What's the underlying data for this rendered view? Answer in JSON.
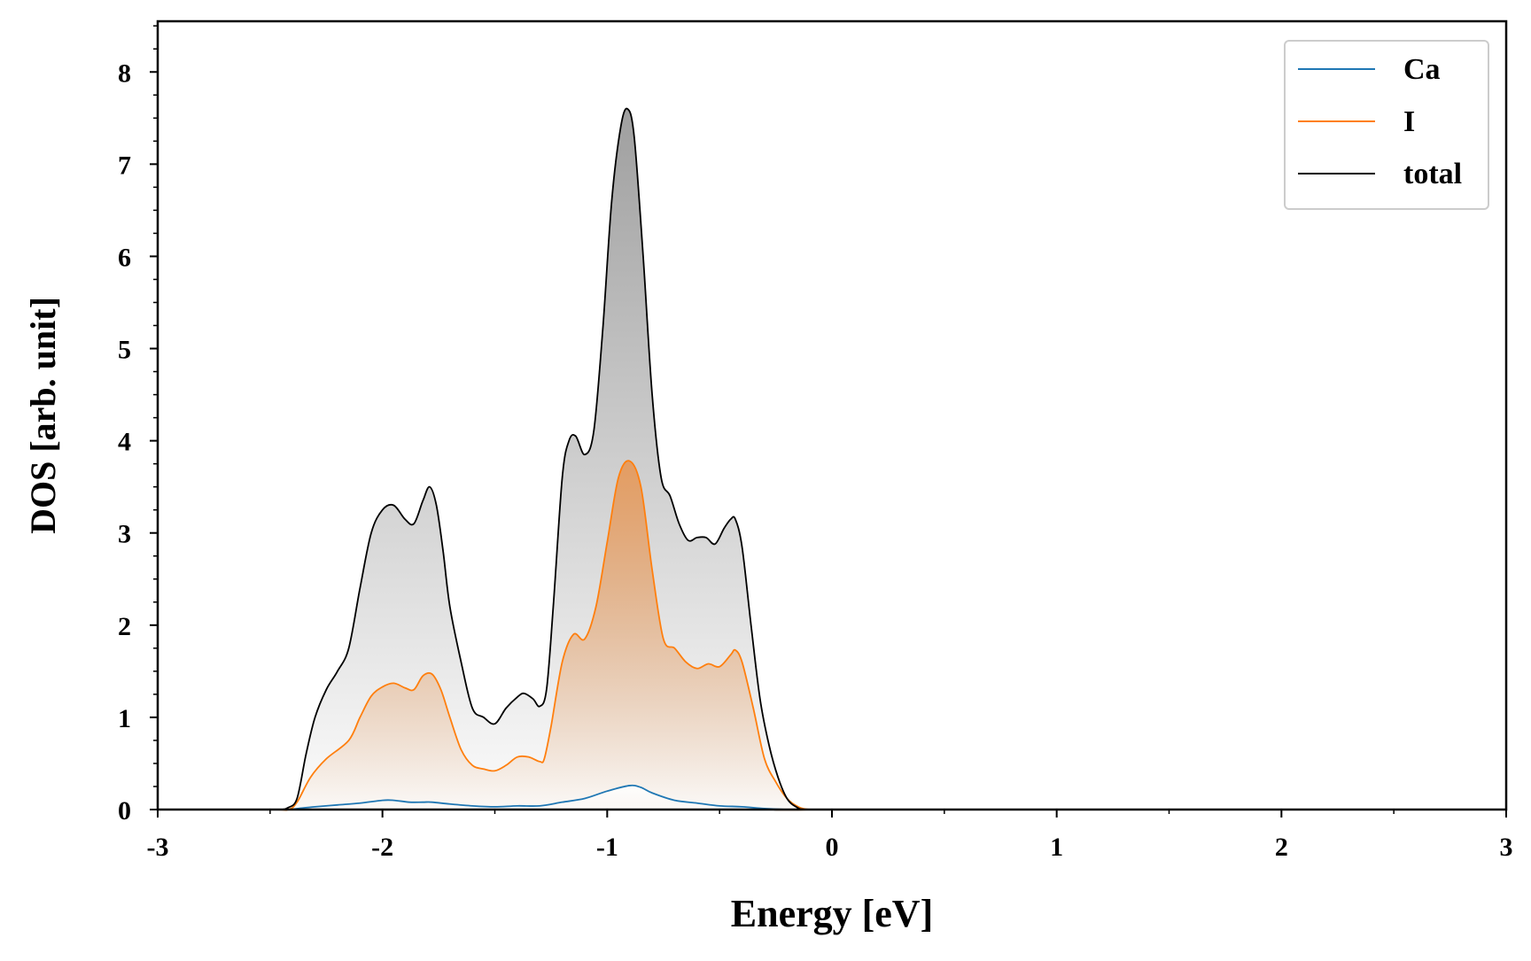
{
  "chart_data": {
    "type": "area",
    "title": "",
    "xlabel": "Energy [eV]",
    "ylabel": "DOS [arb. unit]",
    "xlim": [
      -3,
      3
    ],
    "ylim": [
      0,
      8.55
    ],
    "x_ticks": [
      "-3",
      "-2",
      "-1",
      "0",
      "1",
      "2",
      "3"
    ],
    "y_ticks": [
      "0",
      "1",
      "2",
      "3",
      "4",
      "5",
      "6",
      "7",
      "8"
    ],
    "grid": false,
    "legend_position": "top-right",
    "series": [
      {
        "name": "Ca",
        "color": "#1f77b4",
        "fill": "#ffffff",
        "x": [
          -3.0,
          -2.5,
          -2.42,
          -2.38,
          -2.3,
          -2.2,
          -2.1,
          -2.0,
          -1.95,
          -1.88,
          -1.82,
          -1.78,
          -1.7,
          -1.6,
          -1.5,
          -1.4,
          -1.3,
          -1.2,
          -1.1,
          -1.0,
          -0.9,
          -0.85,
          -0.8,
          -0.7,
          -0.6,
          -0.5,
          -0.4,
          -0.3,
          -0.2,
          -0.1,
          0.0,
          3.0
        ],
        "values": [
          0,
          0,
          0.0,
          0.01,
          0.03,
          0.05,
          0.07,
          0.1,
          0.1,
          0.08,
          0.08,
          0.08,
          0.06,
          0.04,
          0.03,
          0.04,
          0.04,
          0.08,
          0.12,
          0.2,
          0.26,
          0.24,
          0.18,
          0.1,
          0.07,
          0.04,
          0.03,
          0.01,
          0.0,
          0.0,
          0,
          0
        ]
      },
      {
        "name": "I",
        "color": "#ff7f0e",
        "fill": "#e59a5c",
        "x": [
          -3.0,
          -2.5,
          -2.42,
          -2.38,
          -2.32,
          -2.25,
          -2.15,
          -2.1,
          -2.05,
          -2.0,
          -1.95,
          -1.9,
          -1.86,
          -1.82,
          -1.78,
          -1.74,
          -1.7,
          -1.65,
          -1.6,
          -1.55,
          -1.5,
          -1.45,
          -1.4,
          -1.35,
          -1.3,
          -1.28,
          -1.25,
          -1.2,
          -1.15,
          -1.1,
          -1.05,
          -1.0,
          -0.95,
          -0.9,
          -0.85,
          -0.8,
          -0.75,
          -0.7,
          -0.65,
          -0.6,
          -0.55,
          -0.5,
          -0.45,
          -0.43,
          -0.4,
          -0.35,
          -0.3,
          -0.25,
          -0.2,
          -0.15,
          -0.1,
          0.0,
          3.0
        ],
        "values": [
          0,
          0,
          0.0,
          0.08,
          0.35,
          0.55,
          0.75,
          1.0,
          1.23,
          1.33,
          1.37,
          1.32,
          1.3,
          1.45,
          1.47,
          1.3,
          1.0,
          0.65,
          0.48,
          0.44,
          0.42,
          0.48,
          0.57,
          0.57,
          0.52,
          0.55,
          0.9,
          1.6,
          1.9,
          1.85,
          2.2,
          2.9,
          3.6,
          3.78,
          3.5,
          2.6,
          1.85,
          1.75,
          1.6,
          1.53,
          1.58,
          1.55,
          1.68,
          1.73,
          1.6,
          1.1,
          0.55,
          0.3,
          0.12,
          0.03,
          0.0,
          0,
          0
        ]
      },
      {
        "name": "total",
        "color": "#000000",
        "fill": "#9a9a9a",
        "x": [
          -3.0,
          -2.5,
          -2.45,
          -2.42,
          -2.38,
          -2.34,
          -2.3,
          -2.25,
          -2.2,
          -2.15,
          -2.1,
          -2.05,
          -2.0,
          -1.95,
          -1.9,
          -1.86,
          -1.82,
          -1.79,
          -1.76,
          -1.73,
          -1.7,
          -1.65,
          -1.6,
          -1.55,
          -1.5,
          -1.45,
          -1.4,
          -1.37,
          -1.33,
          -1.3,
          -1.27,
          -1.24,
          -1.2,
          -1.17,
          -1.14,
          -1.1,
          -1.06,
          -1.02,
          -0.98,
          -0.94,
          -0.91,
          -0.88,
          -0.84,
          -0.8,
          -0.76,
          -0.72,
          -0.68,
          -0.64,
          -0.6,
          -0.56,
          -0.52,
          -0.48,
          -0.45,
          -0.43,
          -0.4,
          -0.36,
          -0.32,
          -0.28,
          -0.24,
          -0.2,
          -0.16,
          -0.12,
          0.0,
          3.0
        ],
        "values": [
          0,
          0,
          0.0,
          0.02,
          0.12,
          0.6,
          1.0,
          1.3,
          1.5,
          1.75,
          2.4,
          3.0,
          3.25,
          3.3,
          3.15,
          3.1,
          3.35,
          3.5,
          3.3,
          2.8,
          2.2,
          1.6,
          1.1,
          1.0,
          0.93,
          1.1,
          1.22,
          1.26,
          1.2,
          1.12,
          1.3,
          2.2,
          3.6,
          4.0,
          4.05,
          3.85,
          4.1,
          5.2,
          6.6,
          7.4,
          7.6,
          7.3,
          6.0,
          4.5,
          3.6,
          3.4,
          3.1,
          2.92,
          2.95,
          2.95,
          2.88,
          3.05,
          3.15,
          3.15,
          2.85,
          2.0,
          1.2,
          0.7,
          0.35,
          0.12,
          0.03,
          0.0,
          0,
          0
        ]
      }
    ]
  }
}
